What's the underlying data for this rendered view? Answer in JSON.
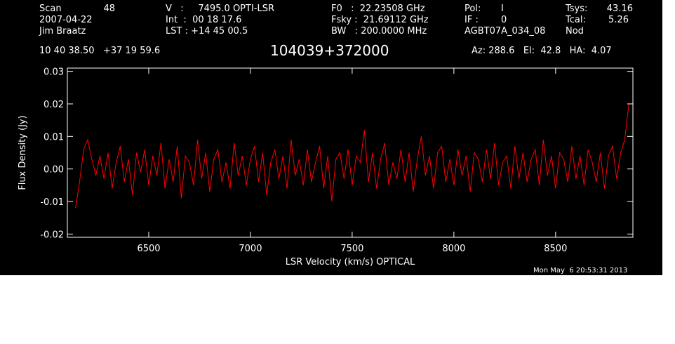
{
  "header": {
    "scan_label": "Scan",
    "scan_value": "48",
    "date": "2007-04-22",
    "observer": "Jim Braatz",
    "v_line": "V   :     7495.0 OPTI-LSR",
    "int_line": "Int  :  00 18 17.6",
    "lst_line": "LST : +14 45 00.5",
    "f0_line": "F0   :  22.23508 GHz",
    "fsky_line": "Fsky :  21.69112 GHz",
    "bw_line": "BW   : 200.0000 MHz",
    "pol_label": "Pol:",
    "pol_value": "I",
    "if_label": "IF :",
    "if_value": "0",
    "project": "AGBT07A_034_08",
    "tsys_label": "Tsys:",
    "tsys_value": "43.16",
    "tcal_label": "Tcal:",
    "tcal_value": "5.26",
    "mode": "Nod",
    "coords": "10 40 38.50   +37 19 59.6",
    "source": "104039+372000",
    "azelha": "Az: 288.6   El:  42.8   HA:  4.07"
  },
  "footer": {
    "timestamp": "Mon May  6 20:53:31 2013"
  },
  "chart_data": {
    "type": "line",
    "title": "104039+372000",
    "xlabel": "LSR Velocity (km/s) OPTICAL",
    "ylabel": "Flux Density (Jy)",
    "xlim": [
      6100,
      8880
    ],
    "ylim": [
      -0.021,
      0.031
    ],
    "xticks": [
      6500,
      7000,
      7500,
      8000,
      8500
    ],
    "xtick_labels": [
      "6500",
      "7000",
      "7500",
      "8000",
      "8500"
    ],
    "yticks": [
      -0.02,
      -0.01,
      0.0,
      0.01,
      0.02,
      0.03
    ],
    "ytick_labels": [
      "-0.02",
      "-0.01",
      "0.00",
      "0.01",
      "0.02",
      "0.03"
    ],
    "grid": false,
    "series": [
      {
        "color": "#ff0000",
        "x": [
          6140,
          6160,
          6180,
          6200,
          6220,
          6240,
          6260,
          6280,
          6300,
          6320,
          6340,
          6360,
          6380,
          6400,
          6420,
          6440,
          6460,
          6480,
          6500,
          6520,
          6540,
          6560,
          6580,
          6600,
          6620,
          6640,
          6660,
          6680,
          6700,
          6720,
          6740,
          6760,
          6780,
          6800,
          6820,
          6840,
          6860,
          6880,
          6900,
          6920,
          6940,
          6960,
          6980,
          7000,
          7020,
          7040,
          7060,
          7080,
          7100,
          7120,
          7140,
          7160,
          7180,
          7200,
          7220,
          7240,
          7260,
          7280,
          7300,
          7320,
          7340,
          7360,
          7380,
          7400,
          7420,
          7440,
          7460,
          7480,
          7500,
          7520,
          7540,
          7560,
          7580,
          7600,
          7620,
          7640,
          7660,
          7680,
          7700,
          7720,
          7740,
          7760,
          7780,
          7800,
          7820,
          7840,
          7860,
          7880,
          7900,
          7920,
          7940,
          7960,
          7980,
          8000,
          8020,
          8040,
          8060,
          8080,
          8100,
          8120,
          8140,
          8160,
          8180,
          8200,
          8220,
          8240,
          8260,
          8280,
          8300,
          8320,
          8340,
          8360,
          8380,
          8400,
          8420,
          8440,
          8460,
          8480,
          8500,
          8520,
          8540,
          8560,
          8580,
          8600,
          8620,
          8640,
          8660,
          8680,
          8700,
          8720,
          8740,
          8760,
          8780,
          8800,
          8820,
          8840,
          8860
        ],
        "y": [
          -0.012,
          -0.004,
          0.006,
          0.009,
          0.003,
          -0.002,
          0.004,
          -0.003,
          0.005,
          -0.006,
          0.002,
          0.007,
          -0.004,
          0.003,
          -0.008,
          0.005,
          -0.001,
          0.006,
          -0.005,
          0.004,
          -0.002,
          0.008,
          -0.006,
          0.003,
          -0.004,
          0.007,
          -0.009,
          0.004,
          0.002,
          -0.005,
          0.009,
          -0.003,
          0.005,
          -0.007,
          0.003,
          0.006,
          -0.004,
          0.002,
          -0.006,
          0.008,
          -0.002,
          0.004,
          -0.005,
          0.003,
          0.007,
          -0.004,
          0.005,
          -0.008,
          0.002,
          0.006,
          -0.003,
          0.004,
          -0.006,
          0.009,
          -0.002,
          0.003,
          -0.005,
          0.006,
          -0.004,
          0.002,
          0.007,
          -0.006,
          0.004,
          -0.01,
          0.003,
          0.005,
          -0.003,
          0.006,
          -0.005,
          0.004,
          0.002,
          0.012,
          -0.004,
          0.005,
          -0.006,
          0.003,
          0.008,
          -0.005,
          0.002,
          -0.003,
          0.006,
          -0.004,
          0.005,
          -0.007,
          0.003,
          0.01,
          -0.002,
          0.004,
          -0.006,
          0.005,
          0.007,
          -0.004,
          0.003,
          -0.005,
          0.006,
          -0.002,
          0.004,
          -0.007,
          0.005,
          0.003,
          -0.004,
          0.006,
          -0.003,
          0.008,
          -0.005,
          0.002,
          0.004,
          -0.006,
          0.007,
          -0.003,
          0.005,
          -0.004,
          0.003,
          0.006,
          -0.005,
          0.009,
          -0.002,
          0.004,
          -0.006,
          0.005,
          0.003,
          -0.004,
          0.007,
          -0.003,
          0.004,
          -0.005,
          0.006,
          0.002,
          -0.004,
          0.005,
          -0.006,
          0.004,
          0.007,
          -0.003,
          0.005,
          0.009,
          0.02
        ]
      }
    ]
  }
}
